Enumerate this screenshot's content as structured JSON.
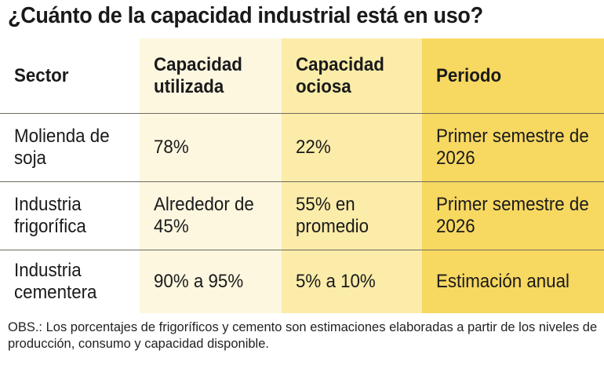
{
  "title": "¿Cuánto de la capacidad industrial está en uso?",
  "table": {
    "headers": [
      "Sector",
      "Capacidad utilizada",
      "Capacidad ociosa",
      "Periodo"
    ],
    "rows": [
      [
        "Molienda de soja",
        "78%",
        "22%",
        "Primer semestre de 2026"
      ],
      [
        "Industria frigorífica",
        "Alrededor de 45%",
        "55% en promedio",
        "Primer semestre de 2026"
      ],
      [
        "Industria cementera",
        "90% a 95%",
        "5% a 10%",
        "Estimación anual"
      ]
    ]
  },
  "note": "OBS.: Los porcentajes de frigoríficos y cemento son estimaciones elaboradas a partir de los niveles de producción, consumo y capacidad disponible.",
  "colors": {
    "column_1": "#ffffff",
    "column_2": "#fdf7e0",
    "column_3": "#fbeca9",
    "column_4": "#f7d861"
  }
}
